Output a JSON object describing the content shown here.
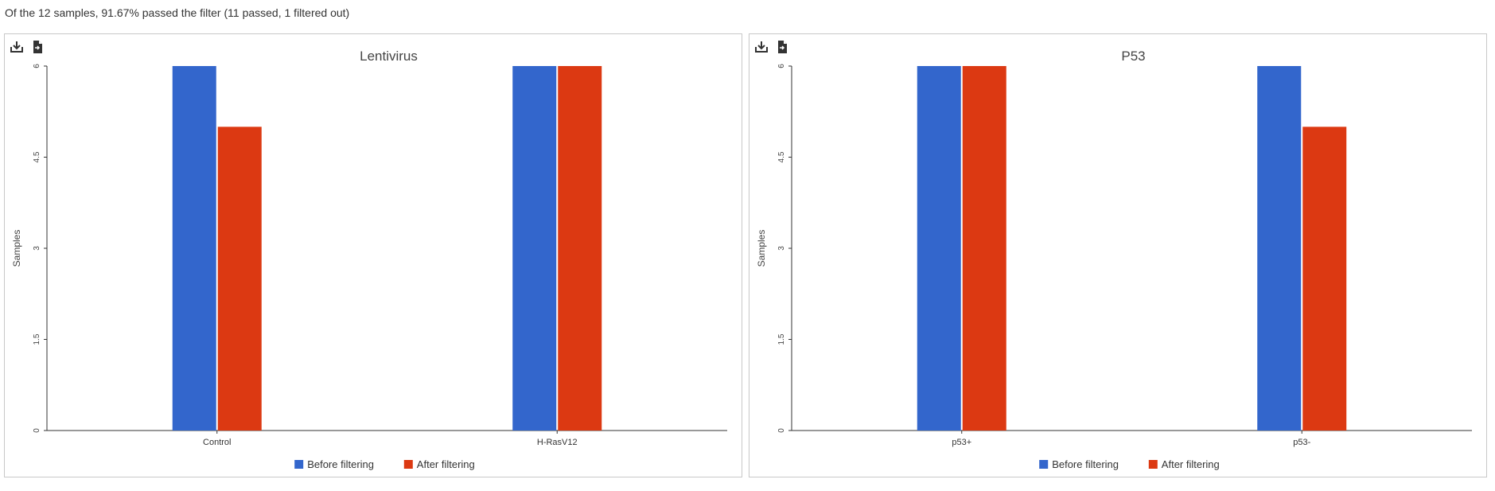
{
  "summary": "Of the 12 samples, 91.67% passed the filter (11 passed, 1 filtered out)",
  "toolbar": {
    "download_icon": "download-icon",
    "export_icon": "export-document-icon"
  },
  "colors": {
    "before": "#3366cc",
    "after": "#dc3912",
    "axis": "#333333",
    "text": "#444444"
  },
  "chart_data": [
    {
      "type": "bar",
      "title": "Lentivirus",
      "ylabel": "Samples",
      "xlabel": "",
      "categories": [
        "Control",
        "H-RasV12"
      ],
      "series": [
        {
          "name": "Before filtering",
          "values": [
            6,
            6
          ]
        },
        {
          "name": "After filtering",
          "values": [
            5,
            6
          ]
        }
      ],
      "ylim": [
        0,
        6
      ],
      "yticks": [
        "0",
        "1.5",
        "3",
        "4.5",
        "6"
      ],
      "grid": false,
      "legend_position": "bottom"
    },
    {
      "type": "bar",
      "title": "P53",
      "ylabel": "Samples",
      "xlabel": "",
      "categories": [
        "p53+",
        "p53-"
      ],
      "series": [
        {
          "name": "Before filtering",
          "values": [
            6,
            6
          ]
        },
        {
          "name": "After filtering",
          "values": [
            6,
            5
          ]
        }
      ],
      "ylim": [
        0,
        6
      ],
      "yticks": [
        "0",
        "1.5",
        "3",
        "4.5",
        "6"
      ],
      "grid": false,
      "legend_position": "bottom"
    }
  ]
}
